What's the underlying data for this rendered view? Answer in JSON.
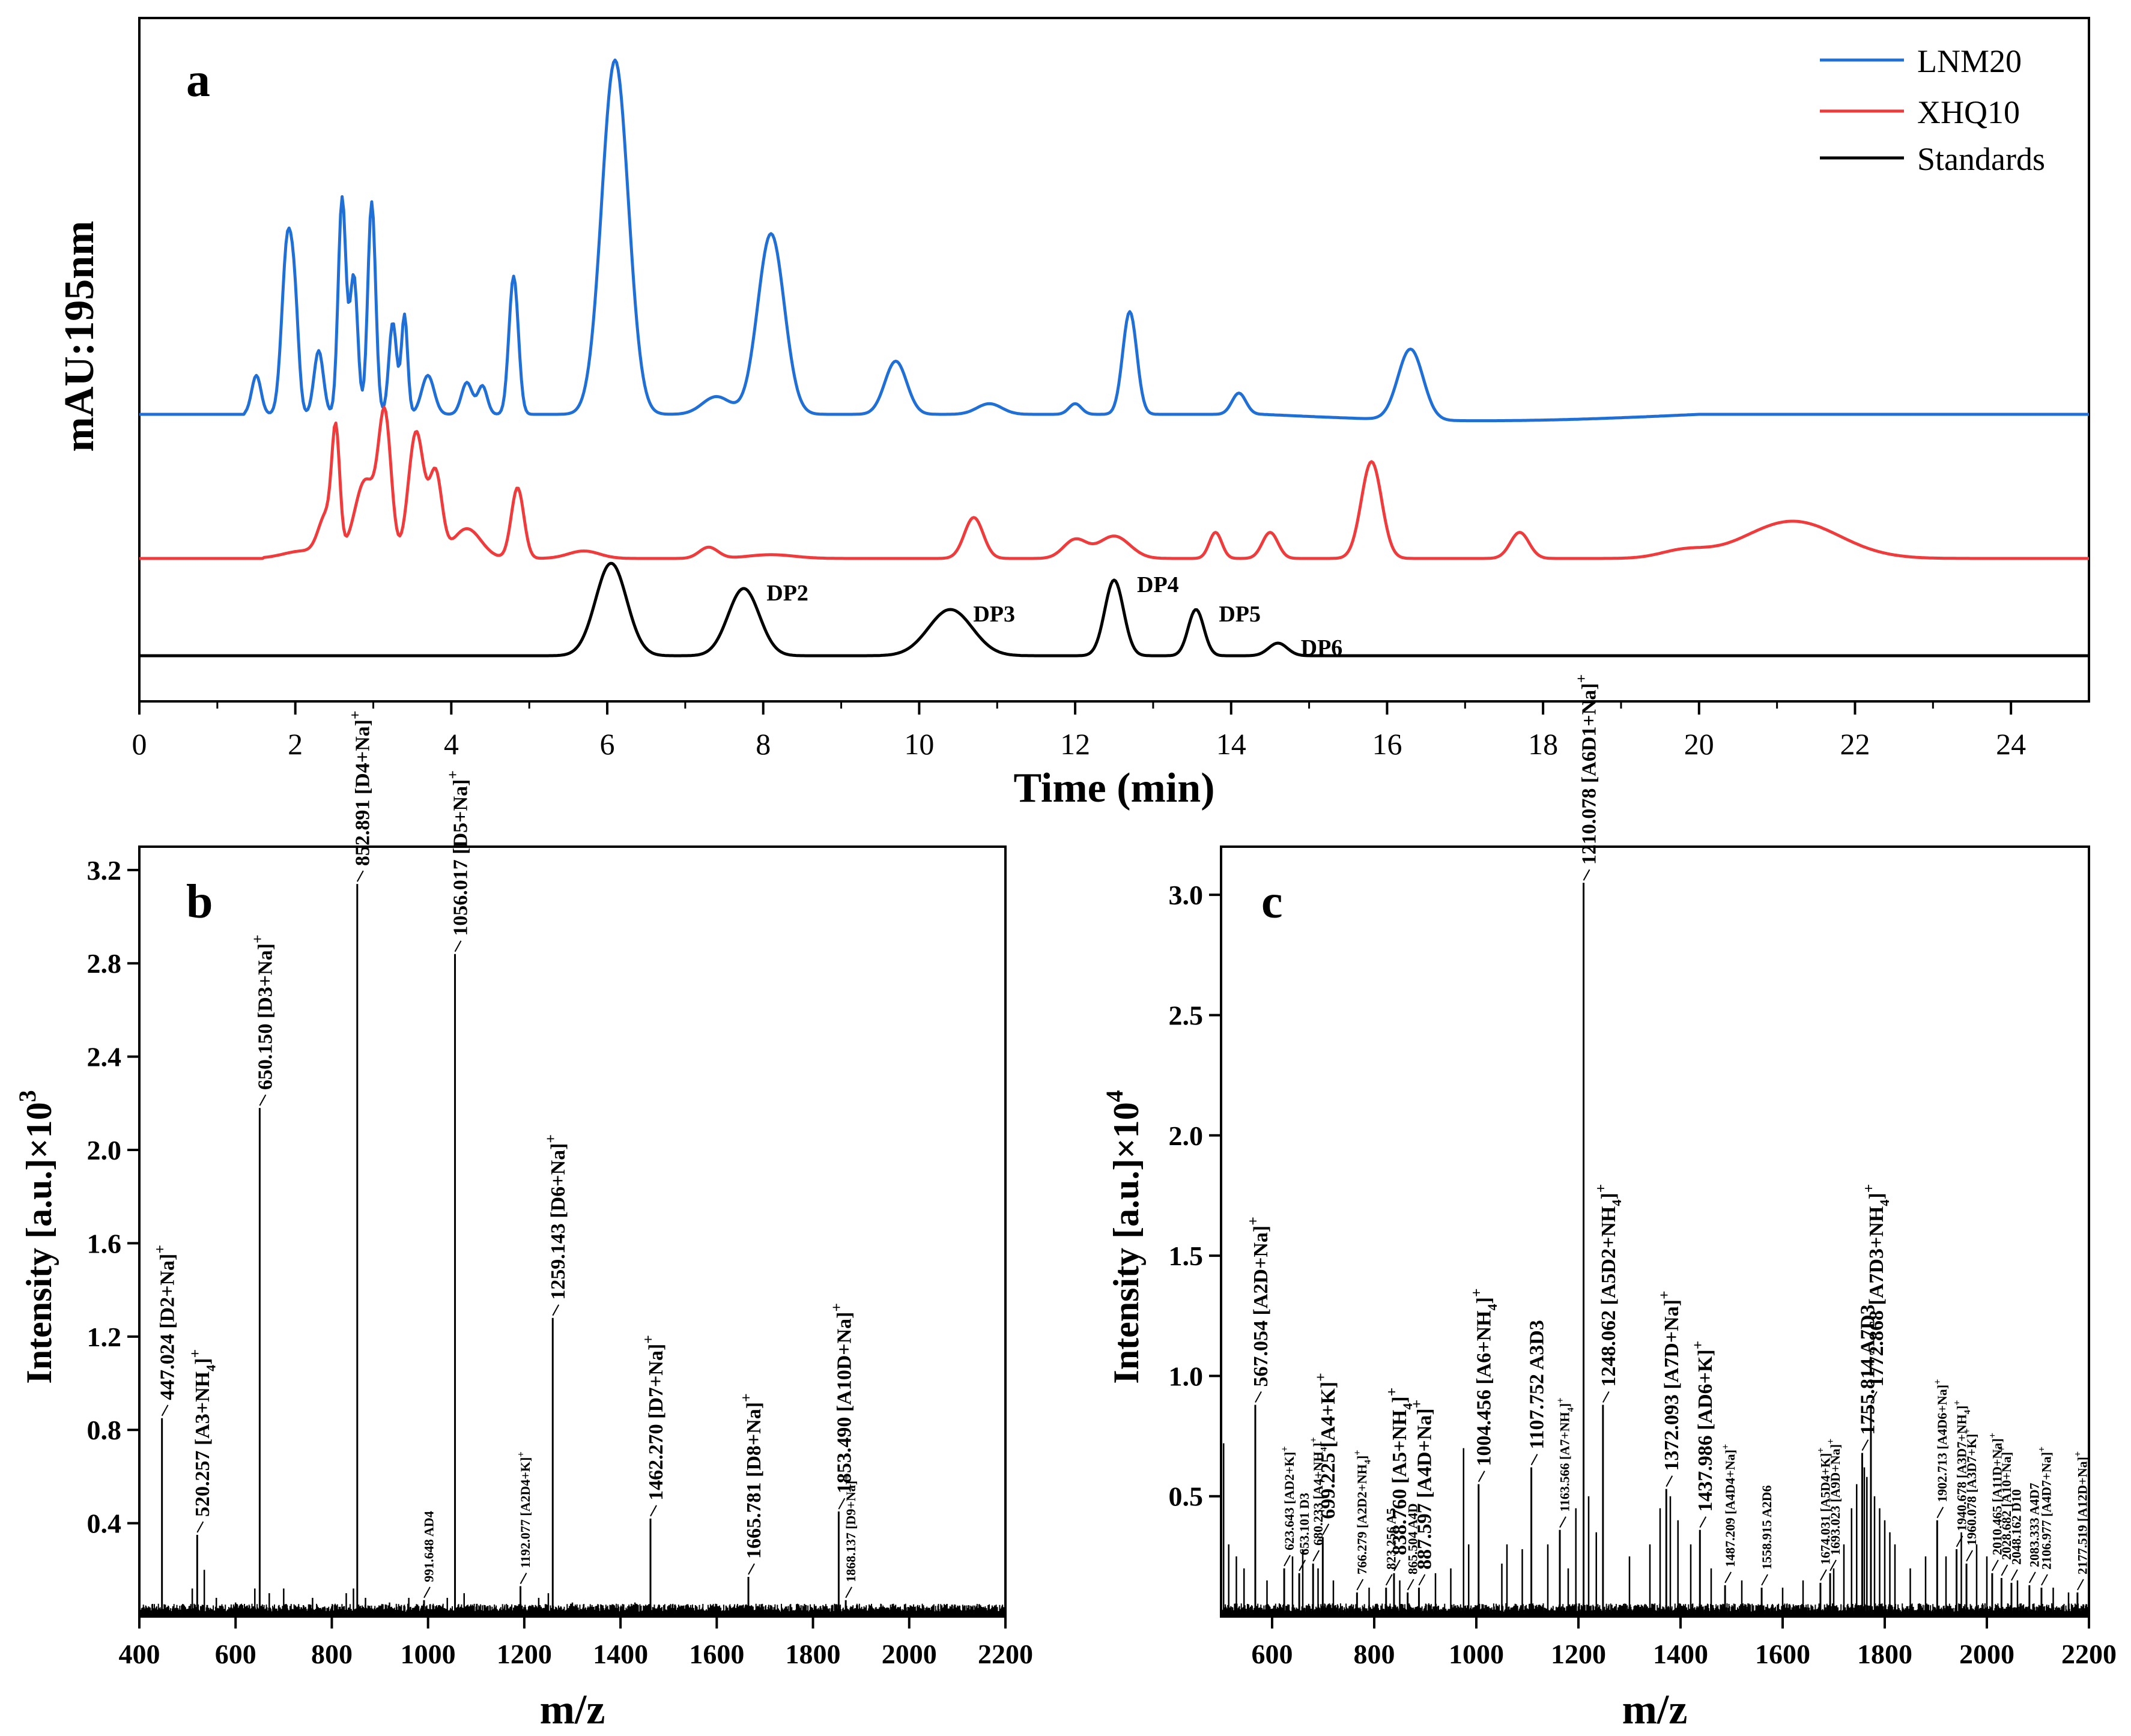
{
  "chart_data": [
    {
      "id": "a",
      "type": "line",
      "panel_label": "a",
      "xlabel": "Time (min)",
      "ylabel": "mAU:195nm",
      "xlim": [
        0,
        25
      ],
      "x_ticks": [
        0,
        2,
        4,
        6,
        8,
        10,
        12,
        14,
        16,
        18,
        20,
        22,
        24
      ],
      "y_ticks_shown": false,
      "legend": {
        "placement": "top-right",
        "entries": [
          {
            "name": "LNM20",
            "color": "#1f6fd6"
          },
          {
            "name": "XHQ10",
            "color": "#ef3b3b"
          },
          {
            "name": "Standards",
            "color": "#000000"
          }
        ]
      },
      "series": [
        {
          "name": "LNM20",
          "color": "#1f6fd6",
          "baseline": 0,
          "peaks": [
            [
              1.5,
              0.11,
              0.06
            ],
            [
              1.9,
              0.49,
              0.07
            ],
            [
              2.0,
              0.2,
              0.05
            ],
            [
              2.3,
              0.18,
              0.06
            ],
            [
              2.6,
              0.61,
              0.05
            ],
            [
              2.75,
              0.39,
              0.05
            ],
            [
              2.98,
              0.6,
              0.05
            ],
            [
              3.25,
              0.26,
              0.05
            ],
            [
              3.4,
              0.28,
              0.04
            ],
            [
              3.7,
              0.11,
              0.08
            ],
            [
              4.2,
              0.09,
              0.07
            ],
            [
              4.4,
              0.08,
              0.06
            ],
            [
              4.8,
              0.39,
              0.06
            ],
            [
              6.1,
              1.0,
              0.17
            ],
            [
              7.4,
              0.05,
              0.18
            ],
            [
              8.1,
              0.51,
              0.17
            ],
            [
              9.7,
              0.15,
              0.14
            ],
            [
              10.9,
              0.03,
              0.16
            ],
            [
              12.0,
              0.03,
              0.08
            ],
            [
              12.7,
              0.29,
              0.09
            ],
            [
              14.1,
              0.06,
              0.09
            ],
            [
              16.3,
              0.2,
              0.16
            ]
          ]
        },
        {
          "name": "XHQ10",
          "color": "#ef3b3b",
          "baseline": 0,
          "peaks": [
            [
              2.1,
              0.02,
              0.25
            ],
            [
              2.4,
              0.11,
              0.1
            ],
            [
              2.52,
              0.3,
              0.05
            ],
            [
              2.9,
              0.21,
              0.14
            ],
            [
              3.15,
              0.36,
              0.08
            ],
            [
              3.55,
              0.34,
              0.1
            ],
            [
              3.8,
              0.22,
              0.08
            ],
            [
              4.2,
              0.08,
              0.18
            ],
            [
              4.85,
              0.19,
              0.08
            ],
            [
              5.7,
              0.02,
              0.2
            ],
            [
              7.3,
              0.03,
              0.12
            ],
            [
              8.1,
              0.01,
              0.3
            ],
            [
              10.7,
              0.11,
              0.12
            ],
            [
              12.0,
              0.05,
              0.15
            ],
            [
              12.5,
              0.06,
              0.2
            ],
            [
              13.8,
              0.07,
              0.08
            ],
            [
              14.5,
              0.07,
              0.1
            ],
            [
              15.8,
              0.26,
              0.13
            ],
            [
              17.7,
              0.07,
              0.12
            ],
            [
              19.8,
              0.02,
              0.3
            ],
            [
              21.2,
              0.1,
              0.6
            ]
          ]
        },
        {
          "name": "Standards",
          "color": "#000000",
          "baseline": 0,
          "peaks": [
            [
              6.05,
              0.22,
              0.2
            ],
            [
              7.75,
              0.16,
              0.2
            ],
            [
              10.4,
              0.11,
              0.28
            ],
            [
              12.5,
              0.18,
              0.12
            ],
            [
              13.55,
              0.11,
              0.1
            ],
            [
              14.6,
              0.03,
              0.12
            ]
          ],
          "annotations": [
            {
              "text": "DP2",
              "x": 7.75
            },
            {
              "text": "DP3",
              "x": 10.4
            },
            {
              "text": "DP4",
              "x": 12.5
            },
            {
              "text": "DP5",
              "x": 13.55
            },
            {
              "text": "DP6",
              "x": 14.6
            }
          ]
        }
      ]
    },
    {
      "id": "b",
      "type": "bar",
      "panel_label": "b",
      "xlabel": "m/z",
      "ylabel": "Intensity [a.u.]×10",
      "ylabel_superscript": "3",
      "xlim": [
        400,
        2200
      ],
      "ylim": [
        0,
        3.3
      ],
      "x_ticks": [
        400,
        600,
        800,
        1000,
        1200,
        1400,
        1600,
        1800,
        2000,
        2200
      ],
      "y_ticks": [
        0.4,
        0.8,
        1.2,
        1.6,
        2.0,
        2.4,
        2.8,
        3.2
      ],
      "peaks": [
        {
          "mz": 447.024,
          "intensity": 0.85,
          "label": "447.024 [D2+Na]",
          "sup": "+"
        },
        {
          "mz": 520.257,
          "intensity": 0.35,
          "label": "520.257 [A3+NH",
          "sub": "4",
          "tail": "]",
          "sup": "+"
        },
        {
          "mz": 650.15,
          "intensity": 2.18,
          "label": "650.150 [D3+Na]",
          "sup": "+"
        },
        {
          "mz": 852.891,
          "intensity": 3.14,
          "label": "852.891 [D4+Na]",
          "sup": "+"
        },
        {
          "mz": 991.648,
          "intensity": 0.07,
          "label": "991.648 AD4",
          "small": true
        },
        {
          "mz": 1056.017,
          "intensity": 2.84,
          "label": "1056.017 [D5+Na]",
          "sup": "+"
        },
        {
          "mz": 1192.077,
          "intensity": 0.13,
          "label": "1192.077 [A2D4+K]",
          "sup": "+",
          "small": true
        },
        {
          "mz": 1259.143,
          "intensity": 1.28,
          "label": "1259.143 [D6+Na]",
          "sup": "+"
        },
        {
          "mz": 1462.27,
          "intensity": 0.42,
          "label": "1462.270 [D7+Na]",
          "sup": "+"
        },
        {
          "mz": 1665.781,
          "intensity": 0.17,
          "label": "1665.781 [D8+Na]",
          "sup": "+"
        },
        {
          "mz": 1853.49,
          "intensity": 0.45,
          "label": "1853.490 [A10D+Na]",
          "sup": "+"
        },
        {
          "mz": 1868.137,
          "intensity": 0.07,
          "label": "1868.137 [D9+Na]",
          "sup": "+",
          "small": true
        }
      ],
      "minor_peaks": [
        [
          510,
          0.12
        ],
        [
          535,
          0.2
        ],
        [
          560,
          0.08
        ],
        [
          600,
          0.06
        ],
        [
          640,
          0.12
        ],
        [
          670,
          0.1
        ],
        [
          700,
          0.12
        ],
        [
          760,
          0.08
        ],
        [
          830,
          0.1
        ],
        [
          845,
          0.12
        ],
        [
          870,
          0.08
        ],
        [
          920,
          0.06
        ],
        [
          960,
          0.08
        ],
        [
          1040,
          0.08
        ],
        [
          1075,
          0.1
        ],
        [
          1230,
          0.08
        ],
        [
          1250,
          0.1
        ],
        [
          1300,
          0.06
        ],
        [
          1430,
          0.06
        ],
        [
          1660,
          0.05
        ],
        [
          1850,
          0.05
        ]
      ]
    },
    {
      "id": "c",
      "type": "bar",
      "panel_label": "c",
      "xlabel": "m/z",
      "ylabel": "Intensity [a.u.]×10",
      "ylabel_superscript": "4",
      "xlim": [
        500,
        2200
      ],
      "ylim": [
        0,
        3.2
      ],
      "x_ticks": [
        600,
        800,
        1000,
        1200,
        1400,
        1600,
        1800,
        2000,
        2200
      ],
      "y_ticks": [
        0.5,
        1.0,
        1.5,
        2.0,
        2.5,
        3.0
      ],
      "peaks": [
        {
          "mz": 567.054,
          "intensity": 0.88,
          "label": "567.054 [A2D+Na]",
          "sup": "+"
        },
        {
          "mz": 623.643,
          "intensity": 0.2,
          "label": "623.643 [AD2+K]",
          "sup": "+",
          "small": true
        },
        {
          "mz": 653.101,
          "intensity": 0.18,
          "label": "653.101 D3",
          "small": true
        },
        {
          "mz": 680.233,
          "intensity": 0.22,
          "label": "680.233 [A4+NH",
          "sub": "4",
          "tail": "]",
          "sup": "+",
          "small": true
        },
        {
          "mz": 699.225,
          "intensity": 0.33,
          "label": "699.225 [A4+K]",
          "sup": "+"
        },
        {
          "mz": 766.279,
          "intensity": 0.1,
          "label": "766.279 [A2D2+NH",
          "sub": "4",
          "tail": "]",
          "sup": "+",
          "small": true
        },
        {
          "mz": 823.256,
          "intensity": 0.12,
          "label": "823.256 A5",
          "small": true
        },
        {
          "mz": 838.76,
          "intensity": 0.18,
          "label": "838.760 [A5+NH",
          "sub": "4",
          "tail": "]",
          "sup": "+"
        },
        {
          "mz": 865.504,
          "intensity": 0.1,
          "label": "865.504 A4D",
          "small": true
        },
        {
          "mz": 887.597,
          "intensity": 0.12,
          "label": "887.597 [A4D+Na]",
          "sup": "+"
        },
        {
          "mz": 1004.456,
          "intensity": 0.55,
          "label": "1004.456 [A6+NH",
          "sub": "4",
          "tail": "]",
          "sup": "+"
        },
        {
          "mz": 1107.752,
          "intensity": 0.62,
          "label": "1107.752 A3D3"
        },
        {
          "mz": 1163.566,
          "intensity": 0.36,
          "label": "1163.566 [A7+NH",
          "sub": "4",
          "tail": "]",
          "sup": "+",
          "small": true
        },
        {
          "mz": 1210.078,
          "intensity": 3.05,
          "label": "1210.078 [A6D1+Na]",
          "sup": "+"
        },
        {
          "mz": 1248.062,
          "intensity": 0.88,
          "label": "1248.062 [A5D2+NH",
          "sub": "4",
          "tail": "]",
          "sup": "+"
        },
        {
          "mz": 1372.093,
          "intensity": 0.53,
          "label": "1372.093 [A7D+Na]",
          "sup": "+"
        },
        {
          "mz": 1437.986,
          "intensity": 0.36,
          "label": "1437.986 [AD6+K]",
          "sup": "+"
        },
        {
          "mz": 1487.209,
          "intensity": 0.13,
          "label": "1487.209 [A4D4+Na]",
          "sup": "+",
          "small": true
        },
        {
          "mz": 1558.915,
          "intensity": 0.12,
          "label": "1558.915 A2D6",
          "small": true
        },
        {
          "mz": 1674.031,
          "intensity": 0.14,
          "label": "1674.031 [A5D4+K]",
          "sup": "+",
          "small": true
        },
        {
          "mz": 1693.023,
          "intensity": 0.18,
          "label": "1693.023 [A9D+Na]",
          "sup": "+",
          "small": true
        },
        {
          "mz": 1755.814,
          "intensity": 0.68,
          "label": "1755.814 A7D3"
        },
        {
          "mz": 1772.868,
          "intensity": 0.88,
          "label": "1772.868 [A7D3+NH",
          "sub": "4",
          "tail": "]",
          "sup": "+"
        },
        {
          "mz": 1902.713,
          "intensity": 0.4,
          "label": "1902.713 [A4D6+Na]",
          "sup": "+",
          "small": true
        },
        {
          "mz": 1940.678,
          "intensity": 0.28,
          "label": "1940.678 [A3D7+NH",
          "sub": "4",
          "tail": "]",
          "sup": "+",
          "small": true
        },
        {
          "mz": 1960.078,
          "intensity": 0.22,
          "label": "1960.078 [A3D7+K]",
          "sup": "+",
          "small": true
        },
        {
          "mz": 2010.465,
          "intensity": 0.18,
          "label": "2010.465 [A11D+Na]",
          "sup": "+",
          "small": true
        },
        {
          "mz": 2028.682,
          "intensity": 0.16,
          "label": "2028.682 [A10+Na]",
          "sup": "+",
          "small": true
        },
        {
          "mz": 2048.162,
          "intensity": 0.14,
          "label": "2048.162 D10",
          "small": true
        },
        {
          "mz": 2083.333,
          "intensity": 0.13,
          "label": "2083.333 A4D7",
          "small": true
        },
        {
          "mz": 2106.977,
          "intensity": 0.12,
          "label": "2106.977 [A4D7+Na]",
          "sup": "+",
          "small": true
        },
        {
          "mz": 2177.519,
          "intensity": 0.1,
          "label": "2177.519 [A12D+Na]",
          "sup": "+",
          "small": true
        }
      ],
      "minor_peaks": [
        [
          505,
          0.72
        ],
        [
          515,
          0.3
        ],
        [
          530,
          0.25
        ],
        [
          545,
          0.2
        ],
        [
          590,
          0.15
        ],
        [
          640,
          0.25
        ],
        [
          660,
          0.28
        ],
        [
          690,
          0.2
        ],
        [
          720,
          0.15
        ],
        [
          790,
          0.12
        ],
        [
          850,
          0.15
        ],
        [
          920,
          0.18
        ],
        [
          950,
          0.2
        ],
        [
          975,
          0.7
        ],
        [
          985,
          0.3
        ],
        [
          1050,
          0.22
        ],
        [
          1060,
          0.3
        ],
        [
          1090,
          0.28
        ],
        [
          1140,
          0.3
        ],
        [
          1180,
          0.2
        ],
        [
          1195,
          0.45
        ],
        [
          1220,
          0.5
        ],
        [
          1235,
          0.35
        ],
        [
          1300,
          0.25
        ],
        [
          1340,
          0.3
        ],
        [
          1360,
          0.45
        ],
        [
          1380,
          0.5
        ],
        [
          1395,
          0.4
        ],
        [
          1420,
          0.3
        ],
        [
          1460,
          0.2
        ],
        [
          1520,
          0.15
        ],
        [
          1600,
          0.12
        ],
        [
          1640,
          0.15
        ],
        [
          1700,
          0.2
        ],
        [
          1720,
          0.3
        ],
        [
          1735,
          0.45
        ],
        [
          1745,
          0.55
        ],
        [
          1760,
          0.62
        ],
        [
          1765,
          0.58
        ],
        [
          1780,
          0.5
        ],
        [
          1790,
          0.45
        ],
        [
          1800,
          0.4
        ],
        [
          1810,
          0.35
        ],
        [
          1820,
          0.3
        ],
        [
          1850,
          0.2
        ],
        [
          1880,
          0.25
        ],
        [
          1920,
          0.25
        ],
        [
          1950,
          0.35
        ],
        [
          1980,
          0.3
        ],
        [
          2000,
          0.25
        ],
        [
          2060,
          0.15
        ],
        [
          2130,
          0.12
        ],
        [
          2160,
          0.1
        ]
      ]
    }
  ]
}
